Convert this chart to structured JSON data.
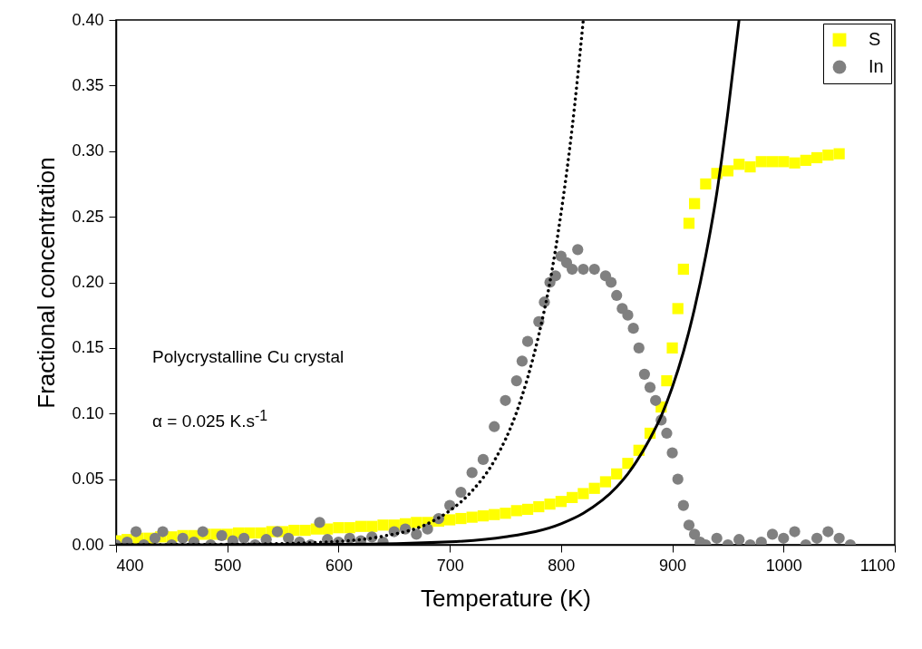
{
  "chart_data": {
    "type": "scatter",
    "xlabel": "Temperature (K)",
    "ylabel": "Fractional concentration",
    "xlim": [
      400,
      1100
    ],
    "xticks": [
      400,
      500,
      600,
      700,
      800,
      900,
      1000,
      1100
    ],
    "ylim": [
      0,
      0.4
    ],
    "yticks": [
      {
        "value": 0,
        "label": "0.00"
      },
      0.05,
      {
        "value": 0.1,
        "label": "0.10"
      },
      0.15,
      {
        "value": 0.2,
        "label": "0.20"
      },
      0.25,
      {
        "value": 0.3,
        "label": "0.30"
      },
      0.35,
      {
        "value": 0.4,
        "label": "0.40"
      }
    ],
    "grid": false,
    "legend": "top right",
    "annotations": [
      "Polycrystalline Cu crystal",
      "α = 0.025 K.s$^{-1}$"
    ],
    "series": [
      {
        "name": "S",
        "marker": "square",
        "color": "#ffff00",
        "x": [
          400,
          410,
          420,
          430,
          440,
          450,
          460,
          470,
          480,
          490,
          500,
          510,
          520,
          530,
          540,
          550,
          560,
          570,
          580,
          590,
          600,
          610,
          620,
          630,
          640,
          650,
          660,
          670,
          680,
          690,
          700,
          710,
          720,
          730,
          740,
          750,
          760,
          770,
          780,
          790,
          800,
          810,
          820,
          830,
          840,
          850,
          860,
          870,
          880,
          890,
          895,
          900,
          905,
          910,
          915,
          920,
          930,
          940,
          950,
          960,
          970,
          980,
          990,
          1000,
          1010,
          1020,
          1030,
          1040,
          1050
        ],
        "values": [
          0.003,
          0.004,
          0.005,
          0.005,
          0.006,
          0.006,
          0.007,
          0.007,
          0.008,
          0.008,
          0.008,
          0.009,
          0.009,
          0.009,
          0.01,
          0.01,
          0.011,
          0.011,
          0.012,
          0.012,
          0.013,
          0.013,
          0.014,
          0.014,
          0.015,
          0.015,
          0.016,
          0.017,
          0.017,
          0.018,
          0.019,
          0.02,
          0.021,
          0.022,
          0.023,
          0.024,
          0.026,
          0.027,
          0.029,
          0.031,
          0.033,
          0.036,
          0.039,
          0.043,
          0.048,
          0.054,
          0.062,
          0.072,
          0.085,
          0.105,
          0.125,
          0.15,
          0.18,
          0.21,
          0.245,
          0.26,
          0.275,
          0.283,
          0.285,
          0.29,
          0.288,
          0.292,
          0.292,
          0.292,
          0.291,
          0.293,
          0.295,
          0.297,
          0.298
        ]
      },
      {
        "name": "In",
        "marker": "circle",
        "color": "#808080",
        "x": [
          400,
          410,
          418,
          425,
          435,
          442,
          450,
          460,
          470,
          478,
          485,
          495,
          505,
          515,
          525,
          535,
          545,
          555,
          565,
          575,
          583,
          590,
          600,
          610,
          620,
          630,
          640,
          650,
          660,
          670,
          680,
          690,
          700,
          710,
          720,
          730,
          740,
          750,
          760,
          765,
          770,
          780,
          785,
          790,
          795,
          800,
          805,
          810,
          815,
          820,
          830,
          840,
          845,
          850,
          855,
          860,
          865,
          870,
          875,
          880,
          885,
          890,
          895,
          900,
          905,
          910,
          915,
          920,
          925,
          930,
          940,
          950,
          960,
          970,
          980,
          990,
          1000,
          1010,
          1020,
          1030,
          1040,
          1050,
          1060
        ],
        "values": [
          0,
          0.002,
          0.01,
          0,
          0.005,
          0.01,
          0,
          0.005,
          0.002,
          0.01,
          0,
          0.007,
          0.003,
          0.005,
          0,
          0.004,
          0.01,
          0.005,
          0.002,
          0,
          0.017,
          0.004,
          0.002,
          0.005,
          0.003,
          0.006,
          0.002,
          0.01,
          0.012,
          0.008,
          0.012,
          0.02,
          0.03,
          0.04,
          0.055,
          0.065,
          0.09,
          0.11,
          0.125,
          0.14,
          0.155,
          0.17,
          0.185,
          0.2,
          0.205,
          0.22,
          0.215,
          0.21,
          0.225,
          0.21,
          0.21,
          0.205,
          0.2,
          0.19,
          0.18,
          0.175,
          0.165,
          0.15,
          0.13,
          0.12,
          0.11,
          0.095,
          0.085,
          0.07,
          0.05,
          0.03,
          0.015,
          0.008,
          0.002,
          0,
          0.005,
          0,
          0.004,
          0,
          0.002,
          0.008,
          0.005,
          0.01,
          0,
          0.005,
          0.01,
          0.005,
          0
        ]
      },
      {
        "type": "line",
        "line_style": "dotted",
        "color": "#000000",
        "x": [
          400,
          500,
          600,
          640,
          680,
          700,
          720,
          740,
          760,
          780,
          790,
          800,
          810,
          820
        ],
        "values": [
          0,
          0.0003,
          0.0026,
          0.0065,
          0.016,
          0.026,
          0.041,
          0.064,
          0.101,
          0.16,
          0.2,
          0.253,
          0.318,
          0.4
        ]
      },
      {
        "type": "line",
        "line_style": "solid",
        "color": "#000000",
        "x": [
          400,
          600,
          700,
          750,
          800,
          820,
          850,
          860,
          880,
          890,
          900,
          910,
          920,
          930,
          940,
          950,
          960
        ],
        "values": [
          0,
          0.0003,
          0.0022,
          0.006,
          0.016,
          0.024,
          0.044,
          0.054,
          0.081,
          0.098,
          0.12,
          0.147,
          0.18,
          0.22,
          0.268,
          0.33,
          0.4
        ]
      }
    ]
  }
}
